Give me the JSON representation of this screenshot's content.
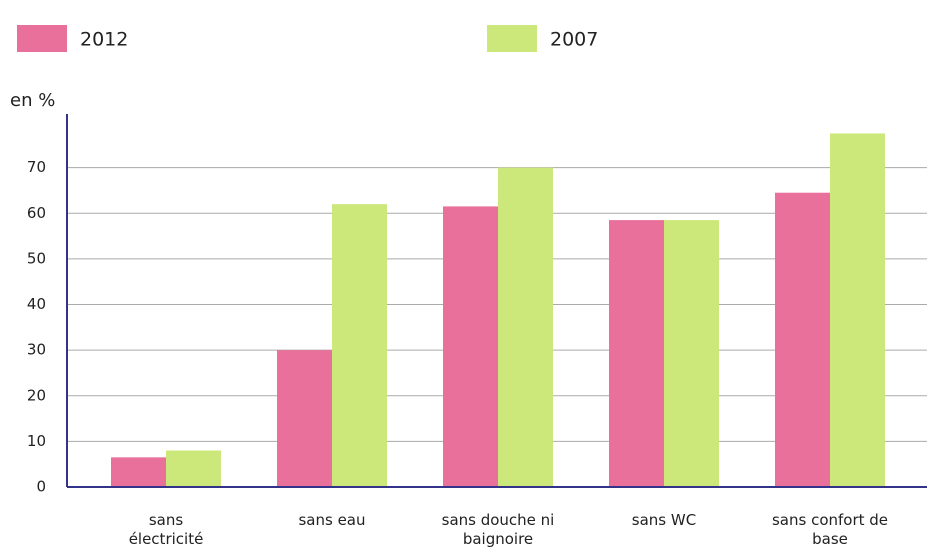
{
  "chart_data": {
    "type": "bar",
    "y_label": "en %",
    "categories": [
      "sans électricité",
      "sans eau",
      "sans douche ni baignoire",
      "sans WC",
      "sans confort de base"
    ],
    "series": [
      {
        "name": "2012",
        "color": "#e8709a",
        "values": [
          6.5,
          30,
          61.5,
          58.5,
          64.5
        ]
      },
      {
        "name": "2007",
        "color": "#cde87a",
        "values": [
          8,
          62,
          70,
          58.5,
          77.5
        ]
      }
    ],
    "ylim": [
      0,
      80
    ],
    "yticks": [
      0,
      10,
      20,
      30,
      40,
      50,
      60,
      70
    ],
    "grid": true
  }
}
